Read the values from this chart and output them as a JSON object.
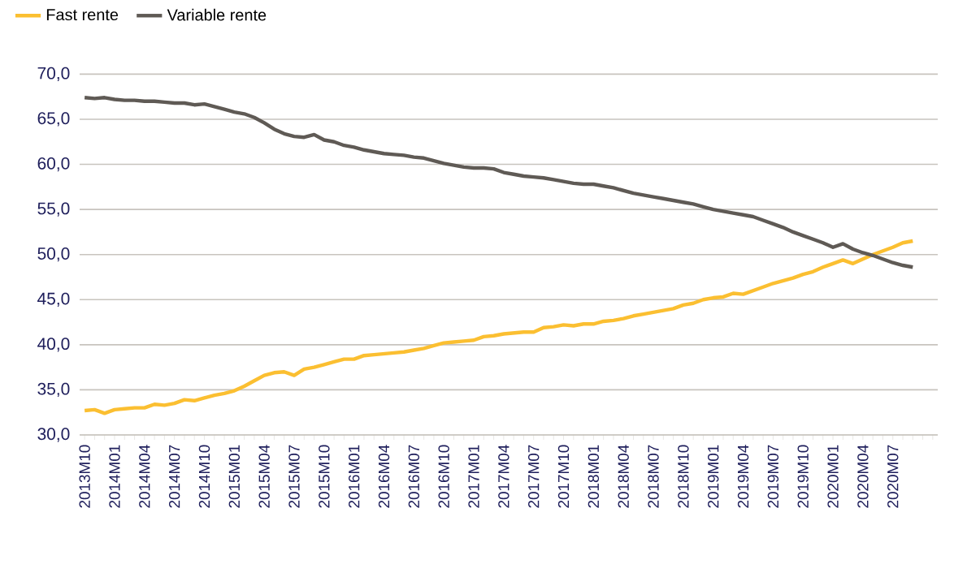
{
  "chart_data": {
    "type": "line",
    "categories": [
      "2013M10",
      null,
      null,
      "2014M01",
      null,
      null,
      "2014M04",
      null,
      null,
      "2014M07",
      null,
      null,
      "2014M10",
      null,
      null,
      "2015M01",
      null,
      null,
      "2015M04",
      null,
      null,
      "2015M07",
      null,
      null,
      "2015M10",
      null,
      null,
      "2016M01",
      null,
      null,
      "2016M04",
      null,
      null,
      "2016M07",
      null,
      null,
      "2016M10",
      null,
      null,
      "2017M01",
      null,
      null,
      "2017M04",
      null,
      null,
      "2017M07",
      null,
      null,
      "2017M10",
      null,
      null,
      "2018M01",
      null,
      null,
      "2018M04",
      null,
      null,
      "2018M07",
      null,
      null,
      "2018M10",
      null,
      null,
      "2019M01",
      null,
      null,
      "2019M04",
      null,
      null,
      "2019M07",
      null,
      null,
      "2019M10",
      null,
      null,
      "2020M01",
      null,
      null,
      "2020M04",
      null,
      null,
      "2020M07",
      null,
      null,
      null,
      null
    ],
    "series": [
      {
        "name": "Fast rente",
        "color": "#fbbf31",
        "values": [
          32.7,
          32.8,
          32.4,
          32.8,
          32.9,
          33.0,
          33.0,
          33.4,
          33.3,
          33.5,
          33.9,
          33.8,
          34.1,
          34.4,
          34.6,
          34.9,
          35.4,
          36.0,
          36.6,
          36.9,
          37.0,
          36.6,
          37.3,
          37.5,
          37.8,
          38.1,
          38.4,
          38.4,
          38.8,
          38.9,
          39.0,
          39.1,
          39.2,
          39.4,
          39.6,
          39.9,
          40.2,
          40.3,
          40.4,
          40.5,
          40.9,
          41.0,
          41.2,
          41.3,
          41.4,
          41.4,
          41.9,
          42.0,
          42.2,
          42.1,
          42.3,
          42.3,
          42.6,
          42.7,
          42.9,
          43.2,
          43.4,
          43.6,
          43.8,
          44.0,
          44.4,
          44.6,
          45.0,
          45.2,
          45.3,
          45.7,
          45.6,
          46.0,
          46.4,
          46.8,
          47.1,
          47.4,
          47.8,
          48.1,
          48.6,
          49.0,
          49.4,
          49.0,
          49.5,
          50.0,
          50.4,
          50.8,
          51.3,
          51.5,
          null,
          null
        ]
      },
      {
        "name": "Variable rente",
        "color": "#5f5a55",
        "values": [
          67.4,
          67.3,
          67.4,
          67.2,
          67.1,
          67.1,
          67.0,
          67.0,
          66.9,
          66.8,
          66.8,
          66.6,
          66.7,
          66.4,
          66.1,
          65.8,
          65.6,
          65.2,
          64.6,
          63.9,
          63.4,
          63.1,
          63.0,
          63.3,
          62.7,
          62.5,
          62.1,
          61.9,
          61.6,
          61.4,
          61.2,
          61.1,
          61.0,
          60.8,
          60.7,
          60.4,
          60.1,
          59.9,
          59.7,
          59.6,
          59.6,
          59.5,
          59.1,
          58.9,
          58.7,
          58.6,
          58.5,
          58.3,
          58.1,
          57.9,
          57.8,
          57.8,
          57.6,
          57.4,
          57.1,
          56.8,
          56.6,
          56.4,
          56.2,
          56.0,
          55.8,
          55.6,
          55.3,
          55.0,
          54.8,
          54.6,
          54.4,
          54.2,
          53.8,
          53.4,
          53.0,
          52.5,
          52.1,
          51.7,
          51.3,
          50.8,
          51.2,
          50.6,
          50.2,
          49.9,
          49.5,
          49.1,
          48.8,
          48.6,
          null,
          null
        ]
      }
    ],
    "ylim": [
      30,
      70
    ],
    "yticks": [
      {
        "value": 30,
        "label": "30,0"
      },
      {
        "value": 35,
        "label": "35,0"
      },
      {
        "value": 40,
        "label": "40,0"
      },
      {
        "value": 45,
        "label": "45,0"
      },
      {
        "value": 50,
        "label": "50,0"
      },
      {
        "value": 55,
        "label": "55,0"
      },
      {
        "value": 60,
        "label": "60,0"
      },
      {
        "value": 65,
        "label": "65,0"
      },
      {
        "value": 70,
        "label": "70,0"
      }
    ],
    "grid": "y",
    "legend": "top left"
  }
}
